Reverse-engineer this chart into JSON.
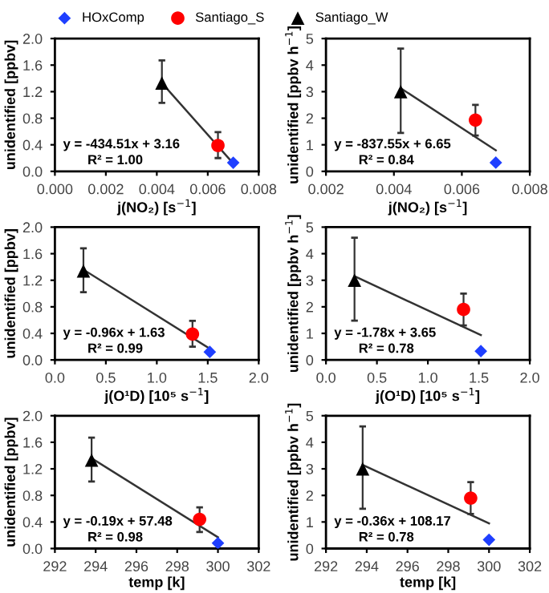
{
  "chart_data": [
    {
      "type": "scatter",
      "xlabel": "j(NO₂) [s$^{−1}$]",
      "ylabel": "unidentified [ppbv]",
      "legend": "top",
      "xlim": [
        0.0,
        0.008
      ],
      "xticks": [
        {
          "value": 0.0,
          "label": "0.000"
        },
        {
          "value": 0.002,
          "label": "0.002"
        },
        {
          "value": 0.004,
          "label": "0.004"
        },
        {
          "value": 0.006,
          "label": "0.006"
        },
        {
          "value": 0.008,
          "label": "0.008"
        }
      ],
      "ylim": [
        0.0,
        2.0
      ],
      "yticks": [
        {
          "value": 0.0,
          "label": "0.0"
        },
        {
          "value": 0.4,
          "label": "0.4"
        },
        {
          "value": 0.8,
          "label": "0.8"
        },
        {
          "value": 1.2,
          "label": "1.2"
        },
        {
          "value": 1.6,
          "label": "1.6"
        },
        {
          "value": 2.0,
          "label": "2.0"
        }
      ],
      "series": [
        {
          "type": "line",
          "color": "#333333",
          "x": [
            0.0042,
            0.007
          ],
          "values": [
            1.33,
            0.12
          ]
        },
        {
          "name": "HOxComp",
          "color": "#1f3fff",
          "marker": "diamond",
          "x": [
            0.007
          ],
          "values": [
            0.13
          ]
        },
        {
          "name": "Santiago_S",
          "color": "#ff0000",
          "marker": "circle",
          "x": [
            0.0064
          ],
          "values": [
            0.39
          ],
          "errors": [
            [
              0.2,
              0.59
            ]
          ]
        },
        {
          "name": "Santiago_W",
          "color": "#000000",
          "marker": "triangle",
          "x": [
            0.0042
          ],
          "values": [
            1.33
          ],
          "errors": [
            [
              1.03,
              1.67
            ]
          ]
        }
      ],
      "annotations": [
        "y = -434.51x + 3.16",
        "R² = 1.00"
      ]
    },
    {
      "type": "scatter",
      "xlabel": "j(NO₂) [s$^{−1}$]",
      "ylabel": "unidentified [ppbv h$^{−1}$]",
      "xlim": [
        0.002,
        0.008
      ],
      "xticks": [
        {
          "value": 0.002,
          "label": "0.002"
        },
        {
          "value": 0.004,
          "label": "0.004"
        },
        {
          "value": 0.006,
          "label": "0.006"
        },
        {
          "value": 0.008,
          "label": "0.008"
        }
      ],
      "ylim": [
        0,
        5
      ],
      "yticks": [
        0,
        1,
        2,
        3,
        4,
        5
      ],
      "series": [
        {
          "type": "line",
          "color": "#333333",
          "x": [
            0.0042,
            0.007
          ],
          "values": [
            3.13,
            0.79
          ]
        },
        {
          "color": "#1f3fff",
          "marker": "diamond",
          "x": [
            0.007
          ],
          "values": [
            0.33
          ]
        },
        {
          "color": "#ff0000",
          "marker": "circle",
          "x": [
            0.0064
          ],
          "values": [
            1.93
          ],
          "errors": [
            [
              1.35,
              2.5
            ]
          ]
        },
        {
          "color": "#000000",
          "marker": "triangle",
          "x": [
            0.0042
          ],
          "values": [
            3.0
          ],
          "errors": [
            [
              1.45,
              4.62
            ]
          ]
        }
      ],
      "annotations": [
        "y = -837.55x + 6.65",
        "R² = 0.84"
      ]
    },
    {
      "type": "scatter",
      "xlabel": "j(O¹D) [10⁵ s$^{−1}$]",
      "ylabel": "unidentified [ppbv]",
      "xlim": [
        0.0,
        2.0
      ],
      "xticks": [
        {
          "value": 0.0,
          "label": "0.0"
        },
        {
          "value": 0.5,
          "label": "0.5"
        },
        {
          "value": 1.0,
          "label": "1.0"
        },
        {
          "value": 1.5,
          "label": "1.5"
        },
        {
          "value": 2.0,
          "label": "2.0"
        }
      ],
      "ylim": [
        0.0,
        2.0
      ],
      "yticks": [
        {
          "value": 0.0,
          "label": "0.0"
        },
        {
          "value": 0.4,
          "label": "0.4"
        },
        {
          "value": 0.8,
          "label": "0.8"
        },
        {
          "value": 1.2,
          "label": "1.2"
        },
        {
          "value": 1.6,
          "label": "1.6"
        },
        {
          "value": 2.0,
          "label": "2.0"
        }
      ],
      "series": [
        {
          "type": "line",
          "color": "#333333",
          "x": [
            0.28,
            1.52
          ],
          "values": [
            1.36,
            0.17
          ]
        },
        {
          "color": "#1f3fff",
          "marker": "diamond",
          "x": [
            1.52
          ],
          "values": [
            0.12
          ]
        },
        {
          "color": "#ff0000",
          "marker": "circle",
          "x": [
            1.35
          ],
          "values": [
            0.39
          ],
          "errors": [
            [
              0.2,
              0.59
            ]
          ]
        },
        {
          "color": "#000000",
          "marker": "triangle",
          "x": [
            0.28
          ],
          "values": [
            1.34
          ],
          "errors": [
            [
              1.02,
              1.68
            ]
          ]
        }
      ],
      "annotations": [
        "y = -0.96x + 1.63",
        "R² = 0.99"
      ]
    },
    {
      "type": "scatter",
      "xlabel": "j(O¹D) [10⁵ s$^{−1}$]",
      "ylabel": "unidentified [ppbv h$^{−1}$]",
      "xlim": [
        0.0,
        2.0
      ],
      "xticks": [
        {
          "value": 0.0,
          "label": "0.0"
        },
        {
          "value": 0.5,
          "label": "0.5"
        },
        {
          "value": 1.0,
          "label": "1.0"
        },
        {
          "value": 1.5,
          "label": "1.5"
        },
        {
          "value": 2.0,
          "label": "2.0"
        }
      ],
      "ylim": [
        0,
        5
      ],
      "yticks": [
        0,
        1,
        2,
        3,
        4,
        5
      ],
      "series": [
        {
          "type": "line",
          "color": "#333333",
          "x": [
            0.28,
            1.52
          ],
          "values": [
            3.15,
            0.94
          ]
        },
        {
          "color": "#1f3fff",
          "marker": "diamond",
          "x": [
            1.52
          ],
          "values": [
            0.33
          ]
        },
        {
          "color": "#ff0000",
          "marker": "circle",
          "x": [
            1.35
          ],
          "values": [
            1.9
          ],
          "errors": [
            [
              1.3,
              2.5
            ]
          ]
        },
        {
          "color": "#000000",
          "marker": "triangle",
          "x": [
            0.28
          ],
          "values": [
            3.0
          ],
          "errors": [
            [
              1.48,
              4.6
            ]
          ]
        }
      ],
      "annotations": [
        "y = -1.78x + 3.65",
        "R² = 0.78"
      ]
    },
    {
      "type": "scatter",
      "xlabel": "temp [k]",
      "ylabel": "unidentified [ppbv]",
      "xlim": [
        292,
        302
      ],
      "xticks": [
        292,
        294,
        296,
        298,
        300,
        302
      ],
      "ylim": [
        0.0,
        2.0
      ],
      "yticks": [
        {
          "value": 0.0,
          "label": "0.0"
        },
        {
          "value": 0.4,
          "label": "0.4"
        },
        {
          "value": 0.8,
          "label": "0.8"
        },
        {
          "value": 1.2,
          "label": "1.2"
        },
        {
          "value": 1.6,
          "label": "1.6"
        },
        {
          "value": 2.0,
          "label": "2.0"
        }
      ],
      "series": [
        {
          "type": "line",
          "color": "#333333",
          "x": [
            293.8,
            300.0
          ],
          "values": [
            1.36,
            0.17
          ]
        },
        {
          "color": "#1f3fff",
          "marker": "diamond",
          "x": [
            300.0
          ],
          "values": [
            0.08
          ]
        },
        {
          "color": "#ff0000",
          "marker": "circle",
          "x": [
            299.1
          ],
          "values": [
            0.44
          ],
          "errors": [
            [
              0.25,
              0.62
            ]
          ]
        },
        {
          "color": "#000000",
          "marker": "triangle",
          "x": [
            293.8
          ],
          "values": [
            1.33
          ],
          "errors": [
            [
              1.01,
              1.67
            ]
          ]
        }
      ],
      "annotations": [
        "y = -0.19x + 57.48",
        "R² = 0.98"
      ]
    },
    {
      "type": "scatter",
      "xlabel": "temp [k]",
      "ylabel": "unidentified [ppbv h$^{−1}$]",
      "xlim": [
        292,
        302
      ],
      "xticks": [
        292,
        294,
        296,
        298,
        300,
        302
      ],
      "ylim": [
        0,
        5
      ],
      "yticks": [
        0,
        1,
        2,
        3,
        4,
        5
      ],
      "series": [
        {
          "type": "line",
          "color": "#333333",
          "x": [
            293.8,
            300.0
          ],
          "values": [
            3.15,
            0.95
          ]
        },
        {
          "color": "#1f3fff",
          "marker": "diamond",
          "x": [
            300.0
          ],
          "values": [
            0.33
          ]
        },
        {
          "color": "#ff0000",
          "marker": "circle",
          "x": [
            299.1
          ],
          "values": [
            1.9
          ],
          "errors": [
            [
              1.3,
              2.5
            ]
          ]
        },
        {
          "color": "#000000",
          "marker": "triangle",
          "x": [
            293.8
          ],
          "values": [
            3.0
          ],
          "errors": [
            [
              1.5,
              4.6
            ]
          ]
        }
      ],
      "annotations": [
        "y = -0.36x + 108.17",
        "R² = 0.78"
      ]
    }
  ]
}
